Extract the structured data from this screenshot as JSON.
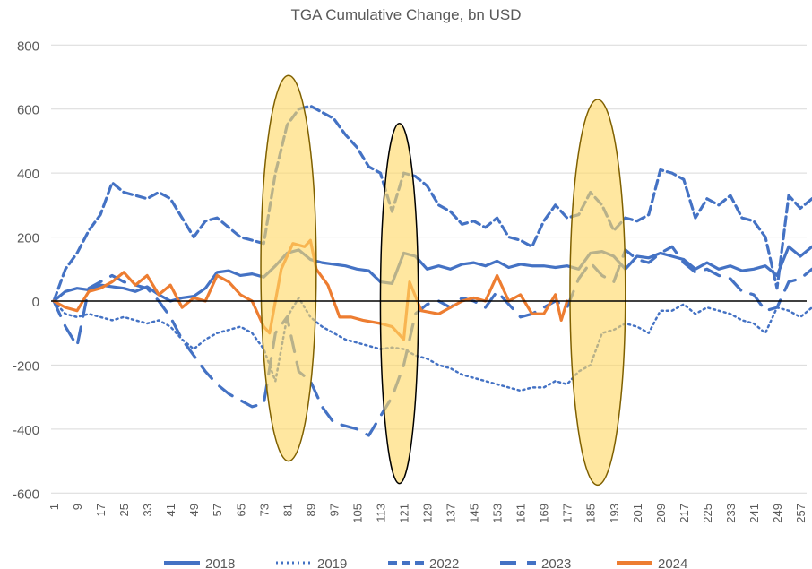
{
  "chart_data": {
    "type": "line",
    "title": "TGA Cumulative Change, bn USD",
    "xlabel": "",
    "ylabel": "",
    "ylim": [
      -600,
      800
    ],
    "yticks": [
      -600,
      -400,
      -200,
      0,
      200,
      400,
      600,
      800
    ],
    "xticks": [
      1,
      9,
      17,
      25,
      33,
      41,
      49,
      57,
      65,
      73,
      81,
      89,
      97,
      105,
      113,
      121,
      129,
      137,
      145,
      153,
      161,
      169,
      177,
      185,
      193,
      201,
      209,
      217,
      225,
      233,
      241,
      249,
      257
    ],
    "xlim": [
      1,
      262
    ],
    "grid": true,
    "legend_position": "bottom",
    "series": [
      {
        "name": "2018",
        "style": "solid",
        "color": "#4472C4",
        "x": [
          1,
          5,
          9,
          13,
          17,
          21,
          25,
          29,
          33,
          37,
          41,
          45,
          49,
          53,
          57,
          61,
          65,
          69,
          73,
          77,
          81,
          85,
          89,
          93,
          97,
          101,
          105,
          109,
          113,
          117,
          121,
          125,
          129,
          133,
          137,
          141,
          145,
          149,
          153,
          157,
          161,
          165,
          169,
          173,
          177,
          181,
          185,
          189,
          193,
          197,
          201,
          205,
          209,
          213,
          217,
          221,
          225,
          229,
          233,
          237,
          241,
          245,
          249,
          253,
          257,
          261
        ],
        "y": [
          0,
          30,
          40,
          35,
          50,
          45,
          40,
          30,
          45,
          20,
          0,
          10,
          15,
          40,
          90,
          95,
          80,
          85,
          75,
          110,
          150,
          160,
          130,
          120,
          115,
          110,
          100,
          95,
          60,
          55,
          150,
          140,
          100,
          110,
          100,
          115,
          120,
          110,
          125,
          105,
          115,
          110,
          110,
          105,
          110,
          100,
          150,
          155,
          140,
          100,
          140,
          135,
          150,
          140,
          130,
          100,
          120,
          100,
          110,
          95,
          100,
          110,
          80,
          170,
          140,
          170
        ]
      },
      {
        "name": "2019",
        "style": "dotted",
        "color": "#4472C4",
        "x": [
          1,
          5,
          9,
          13,
          17,
          21,
          25,
          29,
          33,
          37,
          41,
          45,
          49,
          53,
          57,
          61,
          65,
          69,
          73,
          77,
          81,
          85,
          89,
          93,
          97,
          101,
          105,
          109,
          113,
          117,
          121,
          125,
          129,
          133,
          137,
          141,
          145,
          149,
          153,
          157,
          161,
          165,
          169,
          173,
          177,
          181,
          185,
          189,
          193,
          197,
          201,
          205,
          209,
          213,
          217,
          221,
          225,
          229,
          233,
          237,
          241,
          245,
          249,
          253,
          257,
          261
        ],
        "y": [
          0,
          -40,
          -50,
          -40,
          -50,
          -60,
          -50,
          -60,
          -70,
          -60,
          -80,
          -120,
          -150,
          -120,
          -100,
          -90,
          -80,
          -100,
          -150,
          -250,
          -50,
          10,
          -50,
          -80,
          -100,
          -120,
          -130,
          -140,
          -150,
          -145,
          -150,
          -170,
          -180,
          -200,
          -210,
          -230,
          -240,
          -250,
          -260,
          -270,
          -280,
          -270,
          -270,
          -250,
          -260,
          -220,
          -200,
          -100,
          -90,
          -70,
          -80,
          -100,
          -30,
          -30,
          -10,
          -40,
          -20,
          -30,
          -40,
          -60,
          -70,
          -100,
          -20,
          -30,
          -50,
          -20
        ]
      },
      {
        "name": "2022",
        "style": "dashed",
        "color": "#4472C4",
        "x": [
          1,
          5,
          9,
          13,
          17,
          21,
          25,
          29,
          33,
          37,
          41,
          45,
          49,
          53,
          57,
          61,
          65,
          69,
          73,
          77,
          81,
          85,
          89,
          93,
          97,
          101,
          105,
          109,
          113,
          117,
          121,
          125,
          129,
          133,
          137,
          141,
          145,
          149,
          153,
          157,
          161,
          165,
          169,
          173,
          177,
          181,
          185,
          189,
          193,
          197,
          201,
          205,
          209,
          213,
          217,
          221,
          225,
          229,
          233,
          237,
          241,
          245,
          249,
          253,
          257,
          261
        ],
        "y": [
          0,
          100,
          150,
          220,
          270,
          370,
          340,
          330,
          320,
          340,
          320,
          260,
          200,
          250,
          260,
          230,
          200,
          190,
          180,
          400,
          550,
          600,
          610,
          590,
          570,
          520,
          480,
          420,
          400,
          280,
          400,
          390,
          360,
          300,
          280,
          240,
          250,
          230,
          260,
          200,
          190,
          170,
          250,
          300,
          260,
          270,
          340,
          300,
          220,
          260,
          250,
          270,
          410,
          400,
          380,
          260,
          320,
          300,
          330,
          260,
          250,
          200,
          40,
          330,
          290,
          320
        ]
      },
      {
        "name": "2023",
        "style": "longdash",
        "color": "#4472C4",
        "x": [
          1,
          5,
          9,
          13,
          17,
          21,
          25,
          29,
          33,
          37,
          41,
          45,
          49,
          53,
          57,
          61,
          65,
          69,
          73,
          77,
          81,
          85,
          89,
          93,
          97,
          101,
          105,
          109,
          113,
          117,
          121,
          125,
          129,
          133,
          137,
          141,
          145,
          149,
          153,
          157,
          161,
          165,
          169,
          173,
          177,
          181,
          185,
          189,
          193,
          197,
          201,
          205,
          209,
          213,
          217,
          221,
          225,
          229,
          233,
          237,
          241,
          245,
          249,
          253,
          257,
          261
        ],
        "y": [
          0,
          -80,
          -140,
          40,
          60,
          80,
          60,
          50,
          40,
          0,
          -50,
          -120,
          -170,
          -220,
          -260,
          -290,
          -310,
          -330,
          -320,
          -100,
          -50,
          -220,
          -250,
          -330,
          -380,
          -390,
          -400,
          -420,
          -360,
          -300,
          -200,
          -40,
          -10,
          0,
          -20,
          10,
          0,
          -20,
          30,
          -10,
          -50,
          -40,
          -20,
          0,
          -20,
          70,
          120,
          80,
          60,
          160,
          130,
          120,
          150,
          170,
          120,
          90,
          100,
          80,
          70,
          30,
          20,
          -30,
          -20,
          60,
          70,
          100
        ]
      },
      {
        "name": "2024",
        "style": "solid",
        "color": "#ED7D31",
        "x": [
          1,
          5,
          9,
          13,
          17,
          21,
          25,
          29,
          33,
          37,
          41,
          45,
          49,
          53,
          57,
          61,
          65,
          69,
          73,
          75,
          79,
          83,
          87,
          89,
          91,
          95,
          99,
          103,
          107,
          113,
          117,
          121,
          123,
          127,
          133,
          137,
          141,
          145,
          149,
          153,
          157,
          161,
          165,
          169,
          173,
          175,
          177
        ],
        "y": [
          0,
          -20,
          -30,
          30,
          40,
          60,
          90,
          50,
          80,
          20,
          50,
          -20,
          10,
          0,
          80,
          60,
          20,
          0,
          -80,
          -100,
          100,
          180,
          170,
          190,
          100,
          50,
          -50,
          -50,
          -60,
          -70,
          -80,
          -120,
          60,
          -30,
          -40,
          -20,
          0,
          10,
          0,
          80,
          0,
          20,
          -40,
          -40,
          20,
          -60,
          0
        ]
      }
    ],
    "annotations": [
      {
        "shape": "ellipse",
        "x_range": [
          72,
          91
        ],
        "y_range": [
          -500,
          705
        ],
        "fill": "#FFD966",
        "stroke": "#7F6000"
      },
      {
        "shape": "ellipse",
        "x_range": [
          113,
          126
        ],
        "y_range": [
          -570,
          555
        ],
        "fill": "#FFD966",
        "stroke": "#000000"
      },
      {
        "shape": "ellipse",
        "x_range": [
          178,
          197
        ],
        "y_range": [
          -575,
          630
        ],
        "fill": "#FFD966",
        "stroke": "#7F6000"
      }
    ]
  }
}
